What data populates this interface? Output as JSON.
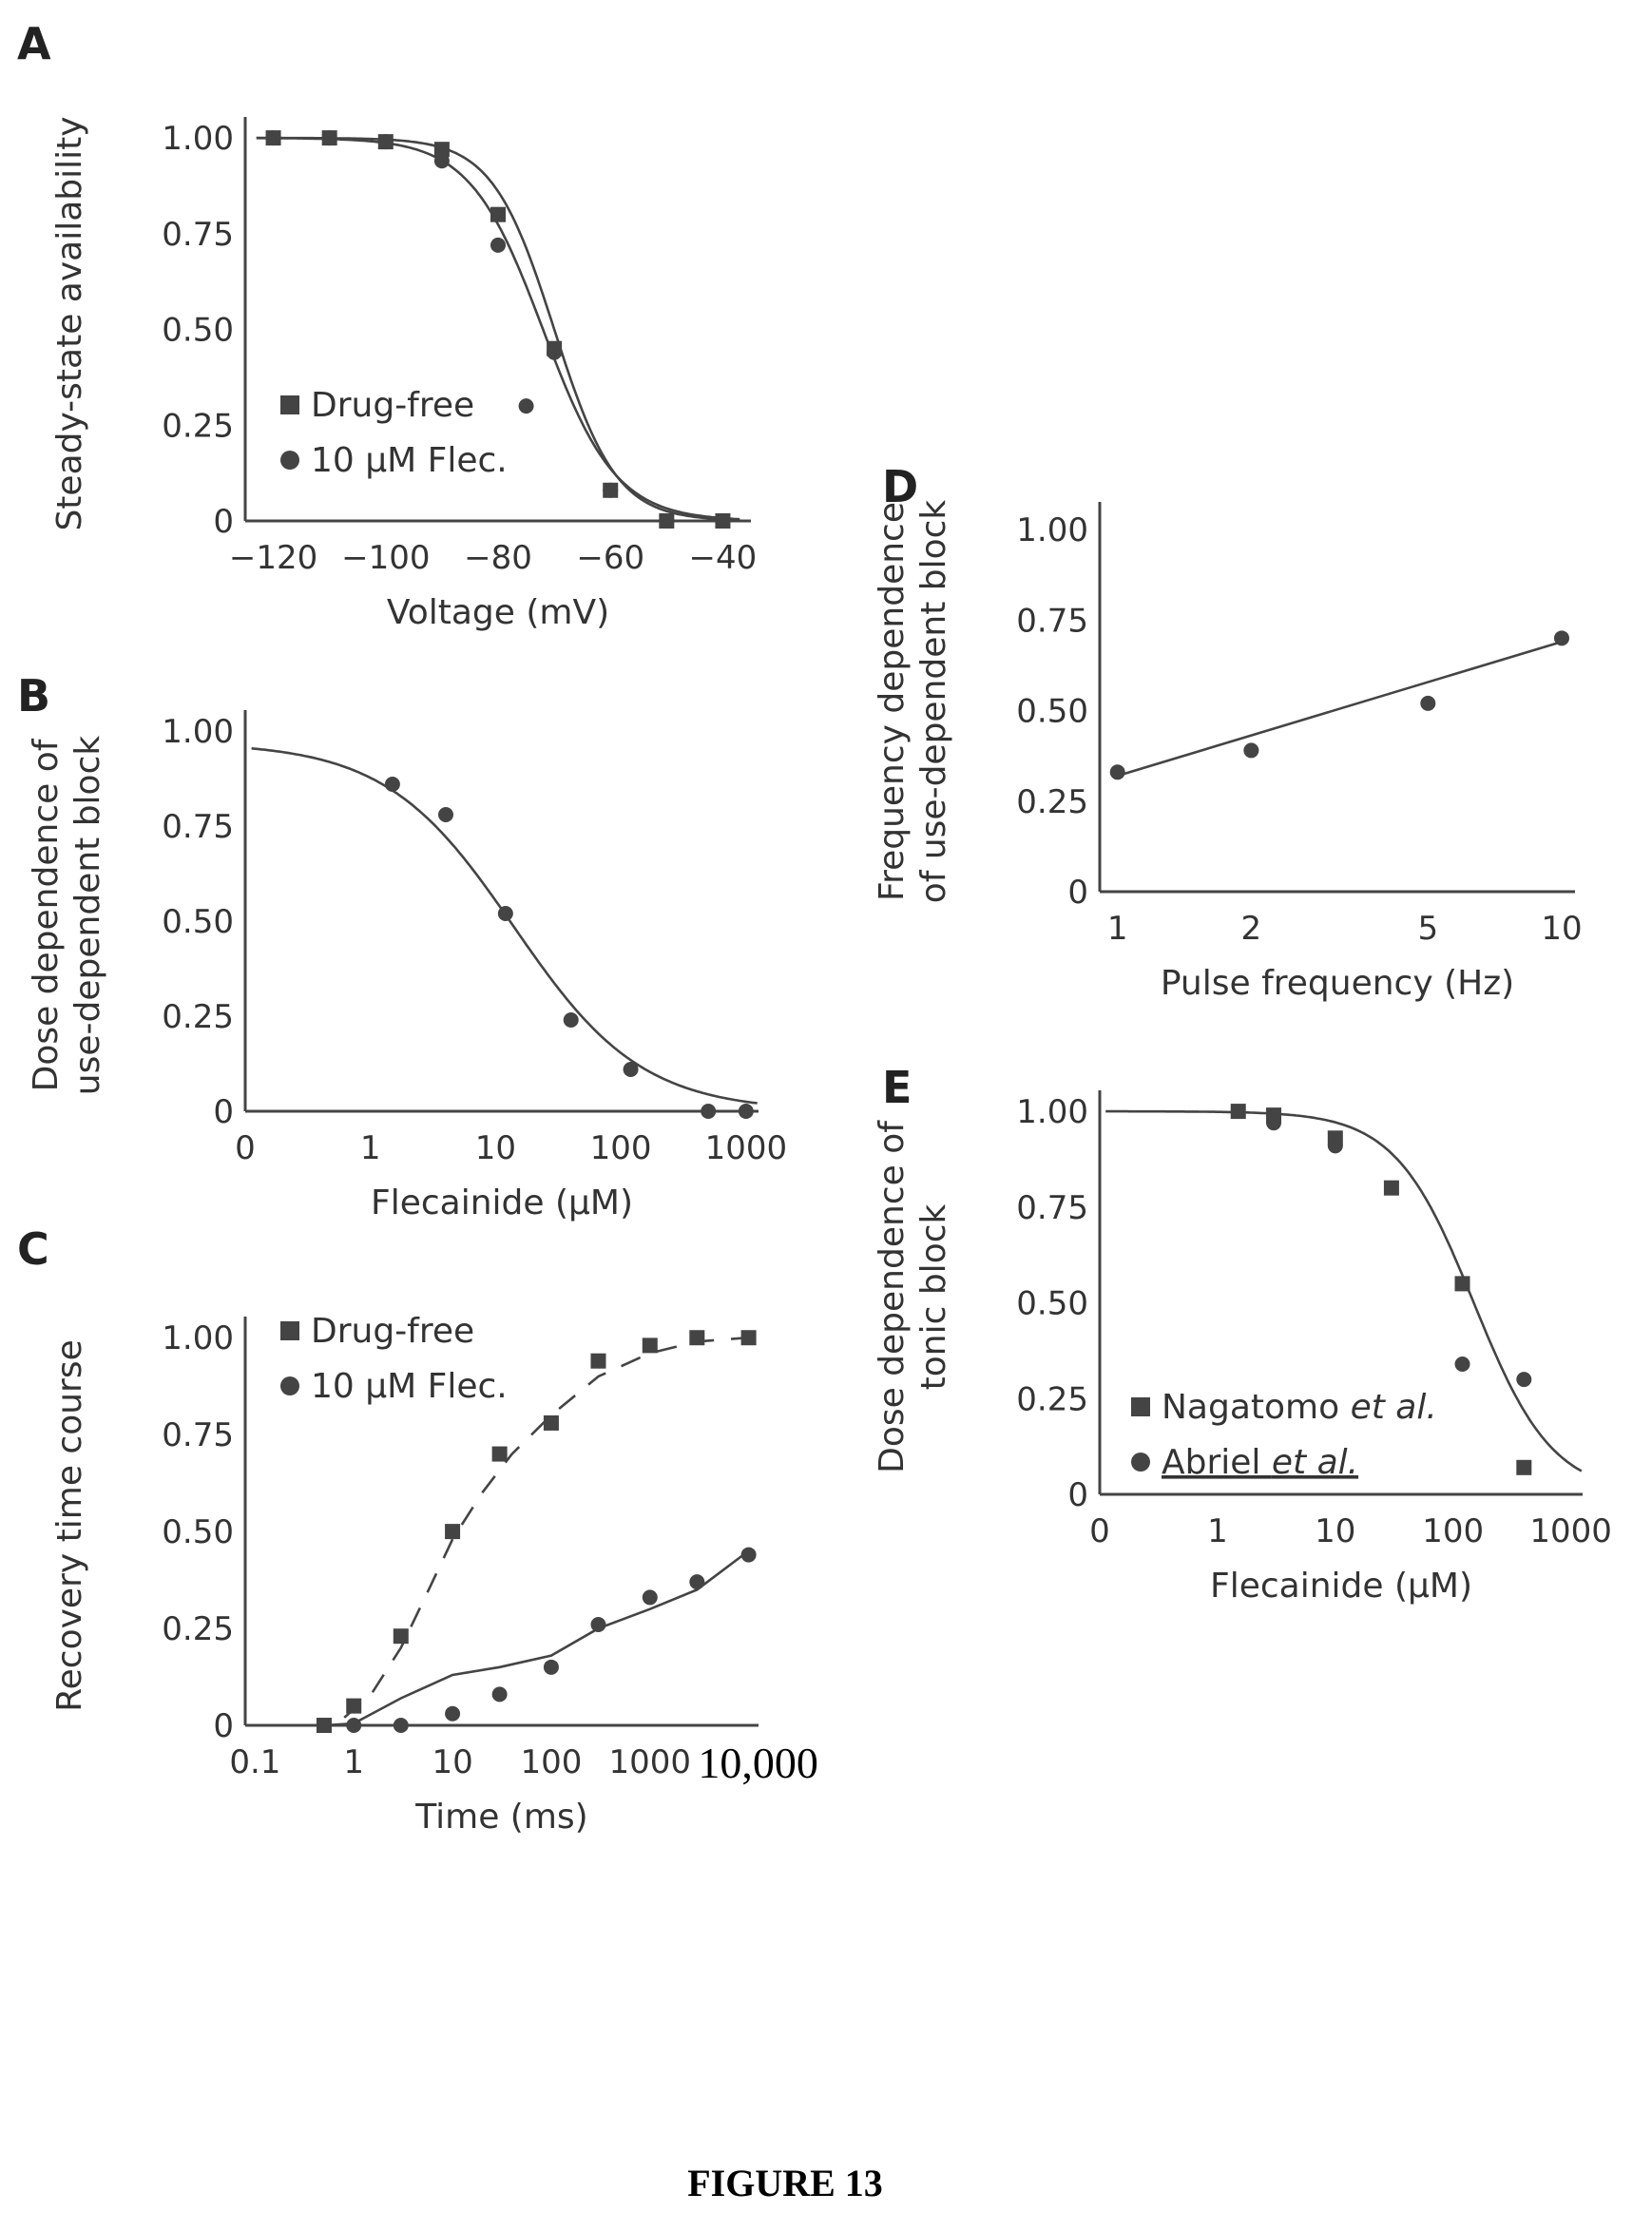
{
  "caption": "FIGURE 13",
  "chart_data": [
    {
      "id": "A",
      "panel": "A",
      "type": "scatter",
      "xlabel": "Voltage (mV)",
      "ylabel": "Steady-state availability",
      "xlim": [
        -125,
        -35
      ],
      "ylim": [
        0,
        1.03
      ],
      "xscale": "linear",
      "xticks": [
        -120,
        -100,
        -80,
        -60,
        -40
      ],
      "xtick_labels": [
        "−120",
        "−100",
        "−80",
        "−60",
        "−40"
      ],
      "yticks": [
        0,
        0.25,
        0.5,
        0.75,
        1.0
      ],
      "ytick_labels": [
        "0",
        "0.25",
        "0.50",
        "0.75",
        "1.00"
      ],
      "legend_position": "lower-left",
      "series": [
        {
          "name": "Drug-free",
          "marker": "square",
          "x": [
            -120,
            -110,
            -100,
            -90,
            -80,
            -70,
            -60,
            -50,
            -40
          ],
          "y": [
            1.0,
            1.0,
            0.99,
            0.97,
            0.8,
            0.45,
            0.08,
            0.0,
            0.0
          ]
        },
        {
          "name": "10 µM Flec.",
          "marker": "circle",
          "x": [
            -120,
            -110,
            -100,
            -90,
            -80,
            -75,
            -70,
            -60,
            -50,
            -40
          ],
          "y": [
            1.0,
            1.0,
            0.99,
            0.94,
            0.72,
            0.3,
            0.44,
            0.08,
            0.0,
            0.0
          ]
        }
      ],
      "fits": [
        {
          "kind": "boltzmann",
          "v_half": -70,
          "k": 5.5,
          "style": "solid"
        },
        {
          "kind": "boltzmann",
          "v_half": -72,
          "k": 6.5,
          "style": "solid"
        }
      ]
    },
    {
      "id": "B",
      "panel": "B",
      "type": "scatter",
      "xlabel": "Flecainide (µM)",
      "ylabel": "Dose dependence of use-dependent block",
      "ylabel_lines": [
        "Dose dependence of",
        "use-dependent block"
      ],
      "xlim": [
        -1,
        3.1
      ],
      "ylim": [
        0,
        1.03
      ],
      "xscale": "log",
      "xticks": [
        -1,
        0,
        1,
        2,
        3
      ],
      "xtick_labels": [
        "0",
        "1",
        "10",
        "100",
        "1000"
      ],
      "yticks": [
        0,
        0.25,
        0.5,
        0.75,
        1.0
      ],
      "ytick_labels": [
        "0",
        "0.25",
        "0.50",
        "0.75",
        "1.00"
      ],
      "series": [
        {
          "name": "",
          "marker": "circle",
          "x": [
            1.5,
            4,
            12,
            40,
            120,
            500,
            1000
          ],
          "y": [
            0.86,
            0.78,
            0.52,
            0.24,
            0.11,
            0.0,
            0.0
          ]
        }
      ],
      "fits": [
        {
          "kind": "hill",
          "top": 0.97,
          "ic50": 14,
          "n": 0.85,
          "style": "solid"
        }
      ]
    },
    {
      "id": "C",
      "panel": "C",
      "type": "scatter",
      "xlabel": "Time (ms)",
      "ylabel": "Recovery time course",
      "xlim": [
        -1.1,
        4.1
      ],
      "ylim": [
        0,
        1.03
      ],
      "xscale": "log",
      "xticks": [
        -1,
        0,
        1,
        2,
        3,
        4
      ],
      "xtick_labels": [
        "0.1",
        "1",
        "10",
        "100",
        "1000",
        "10,000"
      ],
      "yticks": [
        0,
        0.25,
        0.5,
        0.75,
        1.0
      ],
      "ytick_labels": [
        "0",
        "0.25",
        "0.50",
        "0.75",
        "1.00"
      ],
      "legend_position": "top-left",
      "series": [
        {
          "name": "Drug-free",
          "marker": "square",
          "x": [
            0.5,
            1,
            3,
            10,
            30,
            100,
            300,
            1000,
            3000,
            10000
          ],
          "y": [
            0.0,
            0.05,
            0.23,
            0.5,
            0.7,
            0.78,
            0.94,
            0.98,
            1.0,
            1.0
          ]
        },
        {
          "name": "10 µM Flec.",
          "marker": "circle",
          "x": [
            0.5,
            1,
            3,
            10,
            30,
            100,
            300,
            1000,
            3000,
            10000
          ],
          "y": [
            0.0,
            0.0,
            0.0,
            0.03,
            0.08,
            0.15,
            0.26,
            0.33,
            0.37,
            0.44
          ]
        }
      ],
      "fits": [
        {
          "kind": "curve-dashed",
          "style": "dashed",
          "x": [
            0.8,
            1.5,
            3,
            6,
            10,
            20,
            40,
            100,
            300,
            1000,
            3000,
            10000
          ],
          "y": [
            0.02,
            0.08,
            0.2,
            0.36,
            0.48,
            0.6,
            0.7,
            0.8,
            0.9,
            0.96,
            0.99,
            1.0
          ]
        },
        {
          "kind": "curve",
          "style": "solid",
          "x": [
            0.1,
            0.5,
            1,
            3,
            10,
            30,
            100,
            300,
            1000,
            3000,
            10000
          ],
          "y": [
            0.0,
            0.0,
            0.005,
            0.07,
            0.13,
            0.15,
            0.18,
            0.25,
            0.3,
            0.35,
            0.45
          ]
        }
      ]
    },
    {
      "id": "D",
      "panel": "D",
      "type": "line",
      "xlabel": "Pulse frequency (Hz)",
      "ylabel": "Frequency dependence of use-dependent block",
      "ylabel_lines": [
        "Frequency dependence",
        "of use-dependent block"
      ],
      "xlim": [
        -0.04,
        1.03
      ],
      "ylim": [
        0,
        1.05
      ],
      "xscale": "log",
      "xticks": [
        0,
        0.30103,
        0.69897,
        1
      ],
      "xtick_labels": [
        "1",
        "2",
        "5",
        "10"
      ],
      "yticks": [
        0,
        0.25,
        0.5,
        0.75,
        1.0
      ],
      "ytick_labels": [
        "0",
        "0.25",
        "0.50",
        "0.75",
        "1.00"
      ],
      "series": [
        {
          "name": "",
          "marker": "circle",
          "x": [
            1,
            2,
            5,
            10
          ],
          "y": [
            0.33,
            0.39,
            0.52,
            0.7
          ]
        }
      ],
      "fits": [
        {
          "kind": "line",
          "style": "solid",
          "x": [
            1,
            10
          ],
          "y": [
            0.32,
            0.69
          ]
        }
      ]
    },
    {
      "id": "E",
      "panel": "E",
      "type": "scatter",
      "xlabel": "Flecainide (µM)",
      "ylabel": "Dose dependence of tonic block",
      "ylabel_lines": [
        "Dose dependence of",
        "tonic block"
      ],
      "xlim": [
        -1,
        3.1
      ],
      "ylim": [
        0,
        1.03
      ],
      "xscale": "log",
      "xticks": [
        -1,
        0,
        1,
        2,
        3
      ],
      "xtick_labels": [
        "0",
        "1",
        "10",
        "100",
        "1000"
      ],
      "yticks": [
        0,
        0.25,
        0.5,
        0.75,
        1.0
      ],
      "ytick_labels": [
        "0",
        "0.25",
        "0.50",
        "0.75",
        "1.00"
      ],
      "legend_position": "lower-left",
      "series": [
        {
          "name": "Nagatomo et al.",
          "name_parts": [
            "Nagatomo ",
            "et al."
          ],
          "marker": "square",
          "x": [
            1.5,
            3,
            10,
            30,
            120,
            400
          ],
          "y": [
            1.0,
            0.99,
            0.93,
            0.8,
            0.55,
            0.07
          ]
        },
        {
          "name": "Abriel et al.",
          "name_parts": [
            "Abriel ",
            "et al."
          ],
          "marker": "circle",
          "x": [
            3,
            10,
            120,
            400
          ],
          "y": [
            0.97,
            0.91,
            0.34,
            0.3
          ]
        }
      ],
      "fits": [
        {
          "kind": "hill",
          "top": 1.0,
          "ic50": 150,
          "n": 1.3,
          "style": "solid"
        }
      ]
    }
  ]
}
